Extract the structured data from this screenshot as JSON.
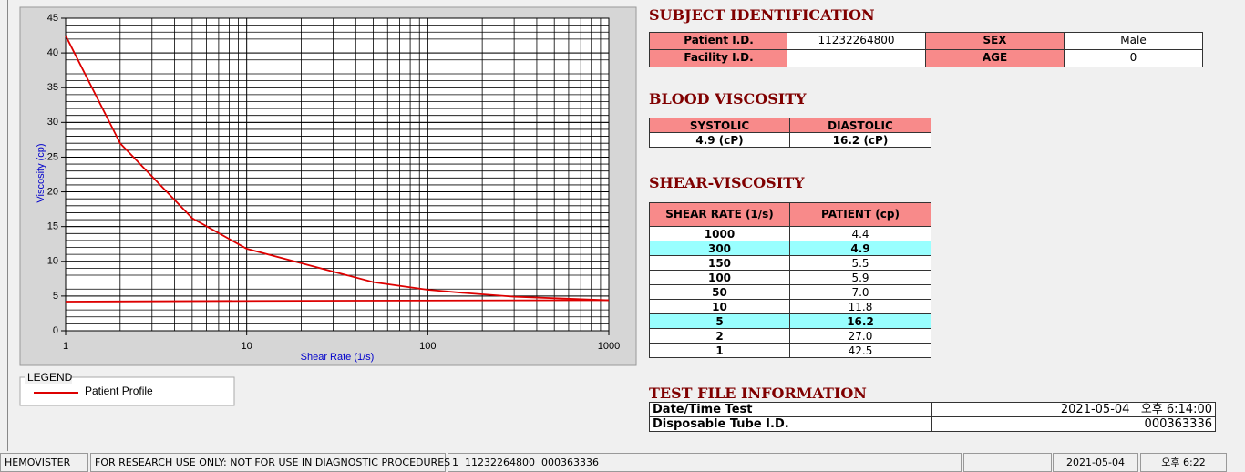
{
  "chart_data": {
    "type": "line",
    "x_label": "Shear Rate (1/s)",
    "y_label": "Viscosity (cp)",
    "log_x": true,
    "grid": true,
    "minor_grid": true,
    "legend_title": "LEGEND",
    "xlim": [
      1,
      1000
    ],
    "xticks": [
      1,
      10,
      100,
      1000
    ],
    "ylim": [
      0,
      45
    ],
    "yticks": [
      0,
      5,
      10,
      15,
      20,
      25,
      30,
      35,
      40,
      45
    ],
    "series": [
      {
        "name": "Patient Profile",
        "color": "#dd0000",
        "x": [
          1,
          2,
          5,
          10,
          50,
          100,
          150,
          300,
          1000
        ],
        "values": [
          42.5,
          27.0,
          16.2,
          11.8,
          7.0,
          5.9,
          5.5,
          4.9,
          4.4
        ]
      },
      {
        "color": "#dd0000",
        "x": [
          1,
          12,
          1000
        ],
        "values": [
          4.2,
          4.3,
          4.4
        ]
      }
    ]
  },
  "subject_identification": {
    "title": "SUBJECT IDENTIFICATION",
    "fields": [
      {
        "label": "Patient I.D.",
        "value": "11232264800"
      },
      {
        "label": "SEX",
        "value": "Male"
      },
      {
        "label": "Facility I.D."
      },
      {
        "label": "AGE",
        "value": "0"
      }
    ]
  },
  "blood_viscosity": {
    "title": "BLOOD VISCOSITY",
    "headers": [
      "SYSTOLIC",
      "DIASTOLIC"
    ],
    "values": [
      "4.9 (cP)",
      "16.2 (cP)"
    ]
  },
  "shear_viscosity": {
    "title": "SHEAR-VISCOSITY",
    "headers": [
      "SHEAR RATE (1/s)",
      "PATIENT (cp)"
    ],
    "rows": [
      {
        "cells": [
          "1000",
          "4.4"
        ]
      },
      {
        "cells": [
          "300",
          "4.9"
        ],
        "highlight": true
      },
      {
        "cells": [
          "150",
          "5.5"
        ]
      },
      {
        "cells": [
          "100",
          "5.9"
        ]
      },
      {
        "cells": [
          "50",
          "7.0"
        ]
      },
      {
        "cells": [
          "10",
          "11.8"
        ]
      },
      {
        "cells": [
          "5",
          "16.2"
        ],
        "highlight": true
      },
      {
        "cells": [
          "2",
          "27.0"
        ]
      },
      {
        "cells": [
          "1",
          "42.5"
        ]
      }
    ]
  },
  "test_file": {
    "title": "TEST FILE INFORMATION",
    "rows": [
      [
        "Date/Time Test",
        "2021-05-04   오후 6:14:00"
      ],
      [
        "Disposable Tube I.D.",
        "000363336"
      ]
    ]
  },
  "status_bar": [
    "HEMOVISTER",
    "FOR RESEARCH USE ONLY: NOT FOR USE IN DIAGNOSTIC PROCEDURES",
    "1  11232264800  000363336",
    "2021-05-04",
    "오후 6:22"
  ]
}
